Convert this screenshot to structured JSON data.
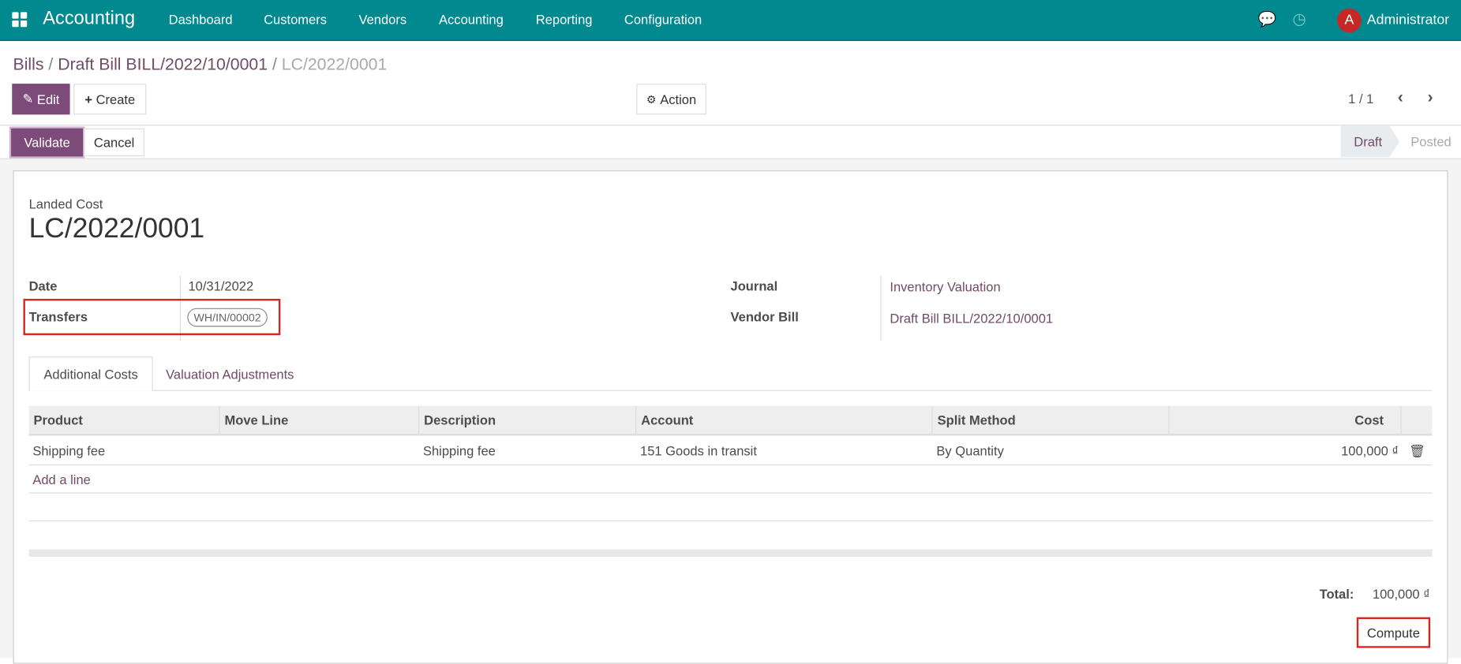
{
  "navbar": {
    "app_title": "Accounting",
    "menu": [
      "Dashboard",
      "Customers",
      "Vendors",
      "Accounting",
      "Reporting",
      "Configuration"
    ],
    "user_initial": "A",
    "user_name": "Administrator",
    "avatar_color": "#c62828",
    "bar_color": "#00898f"
  },
  "breadcrumb": [
    "Bills",
    "Draft Bill BILL/2022/10/0001",
    "LC/2022/0001"
  ],
  "control": {
    "edit": "Edit",
    "create": "Create",
    "action": "Action",
    "pager": "1 / 1"
  },
  "status_bar": {
    "validate": "Validate",
    "cancel": "Cancel",
    "stages": [
      "Draft",
      "Posted"
    ],
    "current": "Draft"
  },
  "form": {
    "record_type": "Landed Cost",
    "name": "LC/2022/0001",
    "fields_left": [
      {
        "label": "Date",
        "value": "10/31/2022"
      },
      {
        "label": "Transfers",
        "value": "WH/IN/00002"
      }
    ],
    "fields_right": [
      {
        "label": "Journal",
        "value": "Inventory Valuation"
      },
      {
        "label": "Vendor Bill",
        "value": "Draft Bill BILL/2022/10/0001"
      }
    ],
    "tabs": [
      "Additional Costs",
      "Valuation Adjustments"
    ],
    "active_tab": "Additional Costs",
    "table": {
      "columns": [
        "Product",
        "Move Line",
        "Description",
        "Account",
        "Split Method",
        "Cost"
      ],
      "rows": [
        [
          "Shipping fee",
          "",
          "Shipping fee",
          "151 Goods in transit",
          "By Quantity",
          "100,000 ₫"
        ]
      ],
      "add_line": "Add a line"
    },
    "total_label": "Total:",
    "total_value": "100,000 ₫",
    "compute": "Compute"
  }
}
